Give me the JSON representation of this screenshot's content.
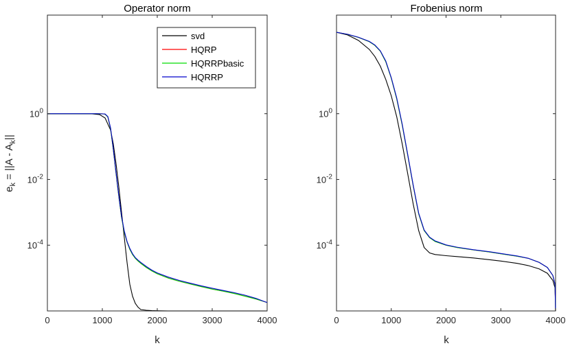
{
  "chart_data": [
    {
      "type": "line",
      "title": "Operator norm",
      "xlabel": "k",
      "ylabel": "e_k = ||A - A_k||",
      "xlim": [
        0,
        4000
      ],
      "ylim": [
        1e-06,
        1000
      ],
      "yscale": "log",
      "xticks": [
        0,
        1000,
        2000,
        3000,
        4000
      ],
      "xtick_labels": [
        "0",
        "1000",
        "2000",
        "3000",
        "4000"
      ],
      "yticks": [
        1,
        0.01,
        0.0001
      ],
      "ytick_labels": [
        {
          "base": "10",
          "exp": "0"
        },
        {
          "base": "10",
          "exp": "-2"
        },
        {
          "base": "10",
          "exp": "-4"
        }
      ],
      "grid": false,
      "legend": {
        "position": "top-right",
        "entries": [
          "svd",
          "HQRP",
          "HQRRPbasic",
          "HQRRP"
        ]
      },
      "series": [
        {
          "name": "svd",
          "color": "#000000",
          "x": [
            0,
            400,
            800,
            950,
            1050,
            1150,
            1200,
            1250,
            1300,
            1350,
            1400,
            1450,
            1500,
            1550,
            1600,
            1650,
            1700,
            1800,
            1900,
            2000,
            2200,
            2500,
            3000,
            3500,
            4000
          ],
          "y": [
            1.0,
            1.0,
            0.99,
            0.94,
            0.74,
            0.32,
            0.12,
            0.03,
            0.006,
            0.001,
            0.00017,
            3e-05,
            6.5e-06,
            2.8e-06,
            1.7e-06,
            1.3e-06,
            1.1e-06,
            1.05e-06,
            1.02e-06,
            1.01e-06,
            1e-06,
            1e-06,
            1e-06,
            1e-06,
            1e-06
          ]
        },
        {
          "name": "HQRP",
          "color": "#ff0000",
          "x": [
            0,
            500,
            900,
            1000,
            1050,
            1100,
            1150,
            1200,
            1250,
            1300,
            1350,
            1400,
            1450,
            1500,
            1550,
            1600,
            1650,
            1700,
            1800,
            1900,
            2000,
            2200,
            2400,
            2600,
            2800,
            3000,
            3200,
            3400,
            3600,
            3800,
            4000
          ],
          "y": [
            1.0,
            1.0,
            1.0,
            0.99,
            0.97,
            0.8,
            0.35,
            0.08,
            0.015,
            0.003,
            0.0007,
            0.00025,
            0.000125,
            7.5e-05,
            5.2e-05,
            4e-05,
            3.3e-05,
            2.8e-05,
            2.1e-05,
            1.65e-05,
            1.35e-05,
            1e-05,
            8e-06,
            6.6e-06,
            5.5e-06,
            4.6e-06,
            4e-06,
            3.4e-06,
            2.8e-06,
            2.3e-06,
            1.8e-06
          ]
        },
        {
          "name": "HQRRPbasic",
          "color": "#00dd00",
          "x": [
            0,
            500,
            900,
            1000,
            1050,
            1100,
            1150,
            1200,
            1250,
            1300,
            1350,
            1400,
            1450,
            1500,
            1550,
            1600,
            1650,
            1700,
            1800,
            1900,
            2000,
            2200,
            2400,
            2600,
            2800,
            3000,
            3200,
            3400,
            3600,
            3800,
            4000
          ],
          "y": [
            1.0,
            1.0,
            1.0,
            0.99,
            0.97,
            0.8,
            0.35,
            0.08,
            0.015,
            0.003,
            0.0007,
            0.00025,
            0.000125,
            7.5e-05,
            5.2e-05,
            4e-05,
            3.3e-05,
            2.8e-05,
            2.1e-05,
            1.65e-05,
            1.35e-05,
            1e-05,
            8e-06,
            6.6e-06,
            5.5e-06,
            4.6e-06,
            4e-06,
            3.4e-06,
            2.8e-06,
            2.3e-06,
            1.8e-06
          ]
        },
        {
          "name": "HQRRP",
          "color": "#0000cc",
          "x": [
            0,
            500,
            900,
            1000,
            1050,
            1100,
            1150,
            1200,
            1250,
            1300,
            1350,
            1400,
            1450,
            1500,
            1550,
            1600,
            1650,
            1700,
            1800,
            1900,
            2000,
            2200,
            2400,
            2600,
            2800,
            3000,
            3200,
            3400,
            3600,
            3800,
            4000
          ],
          "y": [
            1.0,
            1.0,
            1.0,
            0.99,
            0.98,
            0.82,
            0.37,
            0.085,
            0.016,
            0.0032,
            0.00075,
            0.00027,
            0.00013,
            8e-05,
            5.5e-05,
            4.2e-05,
            3.5e-05,
            3e-05,
            2.25e-05,
            1.75e-05,
            1.43e-05,
            1.07e-05,
            8.5e-06,
            7e-06,
            5.8e-06,
            4.9e-06,
            4.2e-06,
            3.6e-06,
            3e-06,
            2.4e-06,
            1.8e-06
          ]
        }
      ]
    },
    {
      "type": "line",
      "title": "Frobenius norm",
      "xlabel": "k",
      "ylabel": "",
      "xlim": [
        0,
        4000
      ],
      "ylim": [
        1e-06,
        1000
      ],
      "yscale": "log",
      "xticks": [
        0,
        1000,
        2000,
        3000,
        4000
      ],
      "xtick_labels": [
        "0",
        "1000",
        "2000",
        "3000",
        "4000"
      ],
      "yticks": [
        1,
        0.01,
        0.0001
      ],
      "ytick_labels": [
        {
          "base": "10",
          "exp": "0"
        },
        {
          "base": "10",
          "exp": "-2"
        },
        {
          "base": "10",
          "exp": "-4"
        }
      ],
      "grid": false,
      "legend": null,
      "series": [
        {
          "name": "svd",
          "color": "#000000",
          "x": [
            0,
            200,
            400,
            600,
            700,
            800,
            900,
            1000,
            1100,
            1200,
            1300,
            1400,
            1500,
            1600,
            1700,
            1800,
            2000,
            2200,
            2500,
            2800,
            3000,
            3300,
            3500,
            3700,
            3850,
            3950,
            3990,
            4000
          ],
          "y": [
            300,
            250,
            170,
            90,
            55,
            28,
            11,
            3.5,
            0.8,
            0.12,
            0.015,
            0.0018,
            0.00028,
            8.5e-05,
            5.8e-05,
            5.2e-05,
            4.8e-05,
            4.5e-05,
            4.1e-05,
            3.6e-05,
            3.3e-05,
            2.8e-05,
            2.4e-05,
            1.9e-05,
            1.4e-05,
            8.5e-06,
            5e-06,
            1e-06
          ]
        },
        {
          "name": "HQRP",
          "color": "#ff0000",
          "x": [
            0,
            200,
            400,
            600,
            700,
            800,
            900,
            1000,
            1100,
            1200,
            1300,
            1400,
            1500,
            1600,
            1700,
            1800,
            2000,
            2200,
            2500,
            2800,
            3000,
            3300,
            3500,
            3700,
            3850,
            3950,
            3990,
            4000
          ],
          "y": [
            300,
            260,
            210,
            155,
            120,
            80,
            38,
            12,
            2.8,
            0.45,
            0.055,
            0.0065,
            0.0009,
            0.00028,
            0.00017,
            0.00013,
            0.0001,
            8.5e-05,
            7.2e-05,
            6.2e-05,
            5.5e-05,
            4.6e-05,
            4e-05,
            3e-05,
            2.1e-05,
            1.2e-05,
            6.5e-06,
            1e-06
          ]
        },
        {
          "name": "HQRRPbasic",
          "color": "#00dd00",
          "x": [
            0,
            200,
            400,
            600,
            700,
            800,
            900,
            1000,
            1100,
            1200,
            1300,
            1400,
            1500,
            1600,
            1700,
            1800,
            2000,
            2200,
            2500,
            2800,
            3000,
            3300,
            3500,
            3700,
            3850,
            3950,
            3990,
            4000
          ],
          "y": [
            300,
            260,
            210,
            155,
            120,
            80,
            38,
            12,
            2.8,
            0.45,
            0.055,
            0.0065,
            0.0009,
            0.00028,
            0.00017,
            0.00013,
            0.0001,
            8.5e-05,
            7.2e-05,
            6.2e-05,
            5.5e-05,
            4.6e-05,
            4e-05,
            3e-05,
            2.1e-05,
            1.2e-05,
            6.5e-06,
            1e-06
          ]
        },
        {
          "name": "HQRRP",
          "color": "#0000cc",
          "x": [
            0,
            200,
            400,
            600,
            700,
            800,
            900,
            1000,
            1100,
            1200,
            1300,
            1400,
            1500,
            1600,
            1700,
            1800,
            2000,
            2200,
            2500,
            2800,
            3000,
            3300,
            3500,
            3700,
            3850,
            3950,
            3990,
            4000
          ],
          "y": [
            300,
            262,
            212,
            158,
            123,
            82,
            40,
            12.5,
            3.0,
            0.48,
            0.058,
            0.0068,
            0.00095,
            0.00029,
            0.000175,
            0.000135,
            0.000102,
            8.7e-05,
            7.3e-05,
            6.3e-05,
            5.6e-05,
            4.7e-05,
            4e-05,
            3e-05,
            2.1e-05,
            1.2e-05,
            6.5e-06,
            1e-06
          ]
        }
      ]
    }
  ]
}
